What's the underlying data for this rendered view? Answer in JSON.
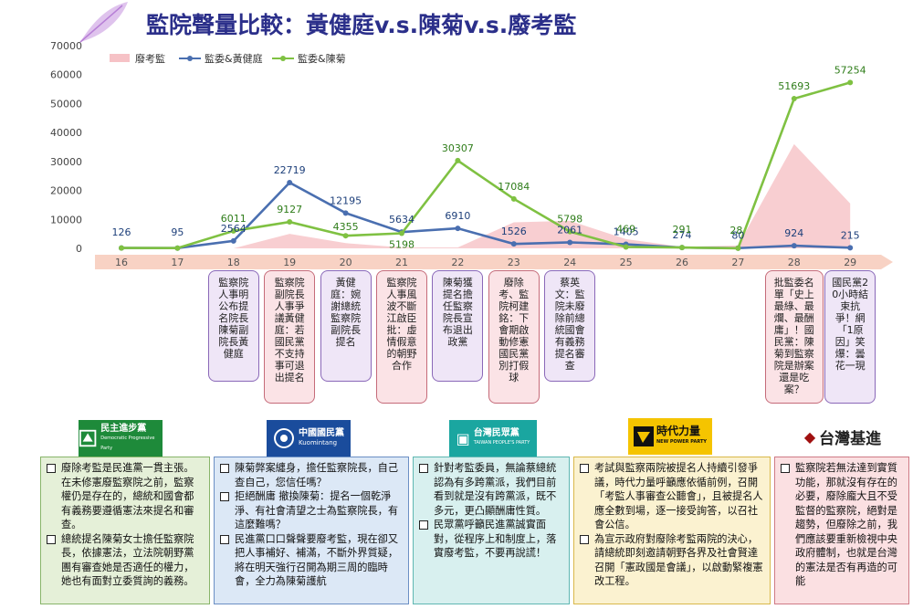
{
  "title": "監院聲量比較：黃健庭v.s.陳菊v.s.廢考監",
  "colors": {
    "title": "#2b2f8a",
    "series_area": "#f6c2c6",
    "series_huang": "#4a6fb0",
    "series_chen": "#7fc142",
    "axis_band": "#f8d2c4"
  },
  "chart_data": {
    "type": "line",
    "x": [
      "16",
      "17",
      "18",
      "19",
      "20",
      "21",
      "22",
      "23",
      "24",
      "25",
      "26",
      "27",
      "28",
      "29"
    ],
    "ylim": [
      0,
      70000
    ],
    "yticks": [
      "0",
      "10000",
      "20000",
      "30000",
      "40000",
      "50000",
      "60000",
      "70000"
    ],
    "grid": false,
    "legend_position": "top-left",
    "series": [
      {
        "name": "廢考監",
        "kind": "area",
        "values": [
          0,
          0,
          0,
          5000,
          1800,
          300,
          300,
          9000,
          9500,
          3200,
          500,
          1000,
          36000,
          15500
        ]
      },
      {
        "name": "監委&黃健庭",
        "kind": "line",
        "values": [
          126,
          95,
          2564,
          22719,
          12195,
          5634,
          6910,
          1526,
          2061,
          1405,
          274,
          80,
          924,
          215
        ],
        "labels": [
          "126",
          "95",
          "2564",
          "22719",
          "12195",
          "5634",
          "6910",
          "1526",
          "2061",
          "1405",
          "274",
          "80",
          "924",
          "215"
        ]
      },
      {
        "name": "監委&陳菊",
        "kind": "line",
        "values": [
          126,
          95,
          6011,
          9127,
          4355,
          5198,
          30307,
          17084,
          5798,
          469,
          291,
          28,
          51693,
          57254
        ],
        "labels": [
          "",
          "",
          "6011",
          "9127",
          "4355",
          "5198",
          "30307",
          "17084",
          "5798",
          "469",
          "291",
          "28",
          "51693",
          "57254"
        ]
      }
    ]
  },
  "callouts": [
    {
      "day": "18",
      "style": "purple",
      "text": "監察院人事明公布提名院長陳菊副院長黃健庭"
    },
    {
      "day": "19",
      "style": "pink",
      "text": "監察院副院長人事爭議黃健庭：若國民黨不支持事可退出提名"
    },
    {
      "day": "20",
      "style": "purple",
      "text": "黃健庭：婉謝總統監察院副院長提名"
    },
    {
      "day": "21",
      "style": "pink",
      "text": "監察院人事風波不斷江啟臣批：虛情假意的朝野合作"
    },
    {
      "day": "22",
      "style": "purple",
      "text": "陳菊獲提名擔任監察院長宣布退出政黨"
    },
    {
      "day": "23",
      "style": "pink",
      "text": "廢除考、監院柯建銘：下會期啟動修憲國民黨別打假球"
    },
    {
      "day": "24",
      "style": "purple",
      "text": "蔡英文：監院未廢除前總統國會有義務提名審查"
    },
    {
      "day": "28",
      "style": "pink",
      "text": "批監委名單「史上最綠、最爛、最酬庸」！國民黨：陳菊到監察院是辦案還是吃案？"
    },
    {
      "day": "29",
      "style": "purple",
      "text": "國民黨20小時結束抗爭！網「1原因」笑爆：曇花一現"
    }
  ],
  "parties": [
    {
      "id": "dpp",
      "logo_text": "民主進步黨",
      "logo_sub": "Democratic Progressive Party",
      "items": [
        "廢除考監是民進黨一貫主張。在未修憲廢監察院之前，監察權仍是存在的，總統和國會都有義務要遵循憲法來提名和審查。",
        "總統提名陳菊女士擔任監察院長，依據憲法，立法院朝野黨團有審查她是否適任的權力，她也有面對立委質詢的義務。"
      ]
    },
    {
      "id": "kmt",
      "logo_text": "中國國民黨",
      "logo_sub": "Kuomintang",
      "items": [
        "陳菊弊案纏身，擔任監察院長，自己查自己，您信任嗎？",
        "拒絕酬庸 撤換陳菊：提名一個乾淨淨、有社會清望之士為監察院長，有這麼難嗎？",
        "民進黨口口聲聲要廢考監，現在卻又把人事補好、補滿，不斷外界質疑，將在明天強行召開為期三周的臨時會，全力為陳菊護航"
      ]
    },
    {
      "id": "tpp",
      "logo_text": "台灣民眾黨",
      "logo_sub": "TAIWAN PEOPLE'S PARTY",
      "items": [
        "針對考監委員，無論蔡總統認為有多跨黨派，我們目前看到就是沒有跨黨派，既不多元，更凸顯酬庸性質。",
        "民眾黨呼籲民進黨誠實面對，從程序上和制度上，落實廢考監，不要再說謊！"
      ]
    },
    {
      "id": "npp",
      "logo_text": "時代力量",
      "logo_sub": "NEW POWER PARTY",
      "items": [
        "考試與監察兩院被提名人持續引發爭議，時代力量呼籲應依循前例，召開「考監人事審查公聽會」，且被提名人應全數到場，逐一接受詢答，以召社會公信。",
        "為宣示政府對廢除考監兩院的決心，請總統即刻邀請朝野各界及社會賢達召開「憲政國是會議」，以啟動緊複憲改工程。"
      ]
    },
    {
      "id": "tsp",
      "logo_text": "台灣基進",
      "items": [
        "監察院若無法達到實質功能，那就沒有存在的必要，廢除龐大且不受監督的監察院，絕對是趨勢，但廢除之前，我們應該要重新檢視中央政府體制，也就是台灣的憲法是否有再造的可能"
      ]
    }
  ]
}
